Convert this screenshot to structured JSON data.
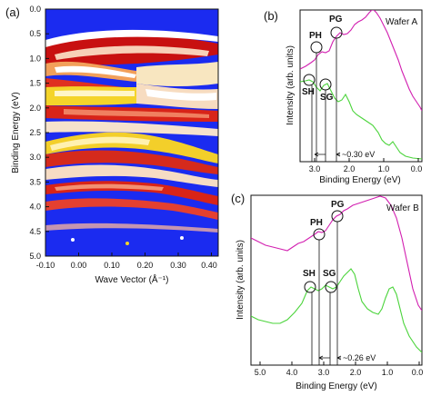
{
  "panels": {
    "a": {
      "label": "(a)",
      "xlabel": "Wave Vector (Å⁻¹)",
      "ylabel": "Binding Energy (eV)",
      "xticks": [
        "-0.10",
        "0.00",
        "0.10",
        "0.20",
        "0.30",
        "0.40"
      ],
      "yticks": [
        "0.0",
        "0.5",
        "1.0",
        "1.5",
        "2.0",
        "2.5",
        "3.0",
        "3.5",
        "4.0",
        "4.5",
        "5.0"
      ]
    },
    "b": {
      "label": "(b)",
      "wafer": "Wafer A",
      "ylabel": "Intensity (arb. units)",
      "xlabel": "Binding Energy (eV)",
      "xticks": [
        "3.0",
        "2.0",
        "1.0",
        "0.0"
      ],
      "peaks": [
        "PG",
        "PH",
        "SG",
        "SH"
      ],
      "splitting": "~0.30 eV"
    },
    "c": {
      "label": "(c)",
      "wafer": "Wafer B",
      "ylabel": "Intensity (arb. units)",
      "xlabel": "Binding Energy (eV)",
      "xticks": [
        "5.0",
        "4.0",
        "3.0",
        "2.0",
        "1.0",
        "0.0"
      ],
      "peaks": [
        "PG",
        "PH",
        "SG",
        "SH"
      ],
      "splitting": "~0.26 eV"
    }
  },
  "colors": {
    "magenta": "#d21fb0",
    "green": "#4bd43b",
    "blue": "#1b2bf0"
  }
}
